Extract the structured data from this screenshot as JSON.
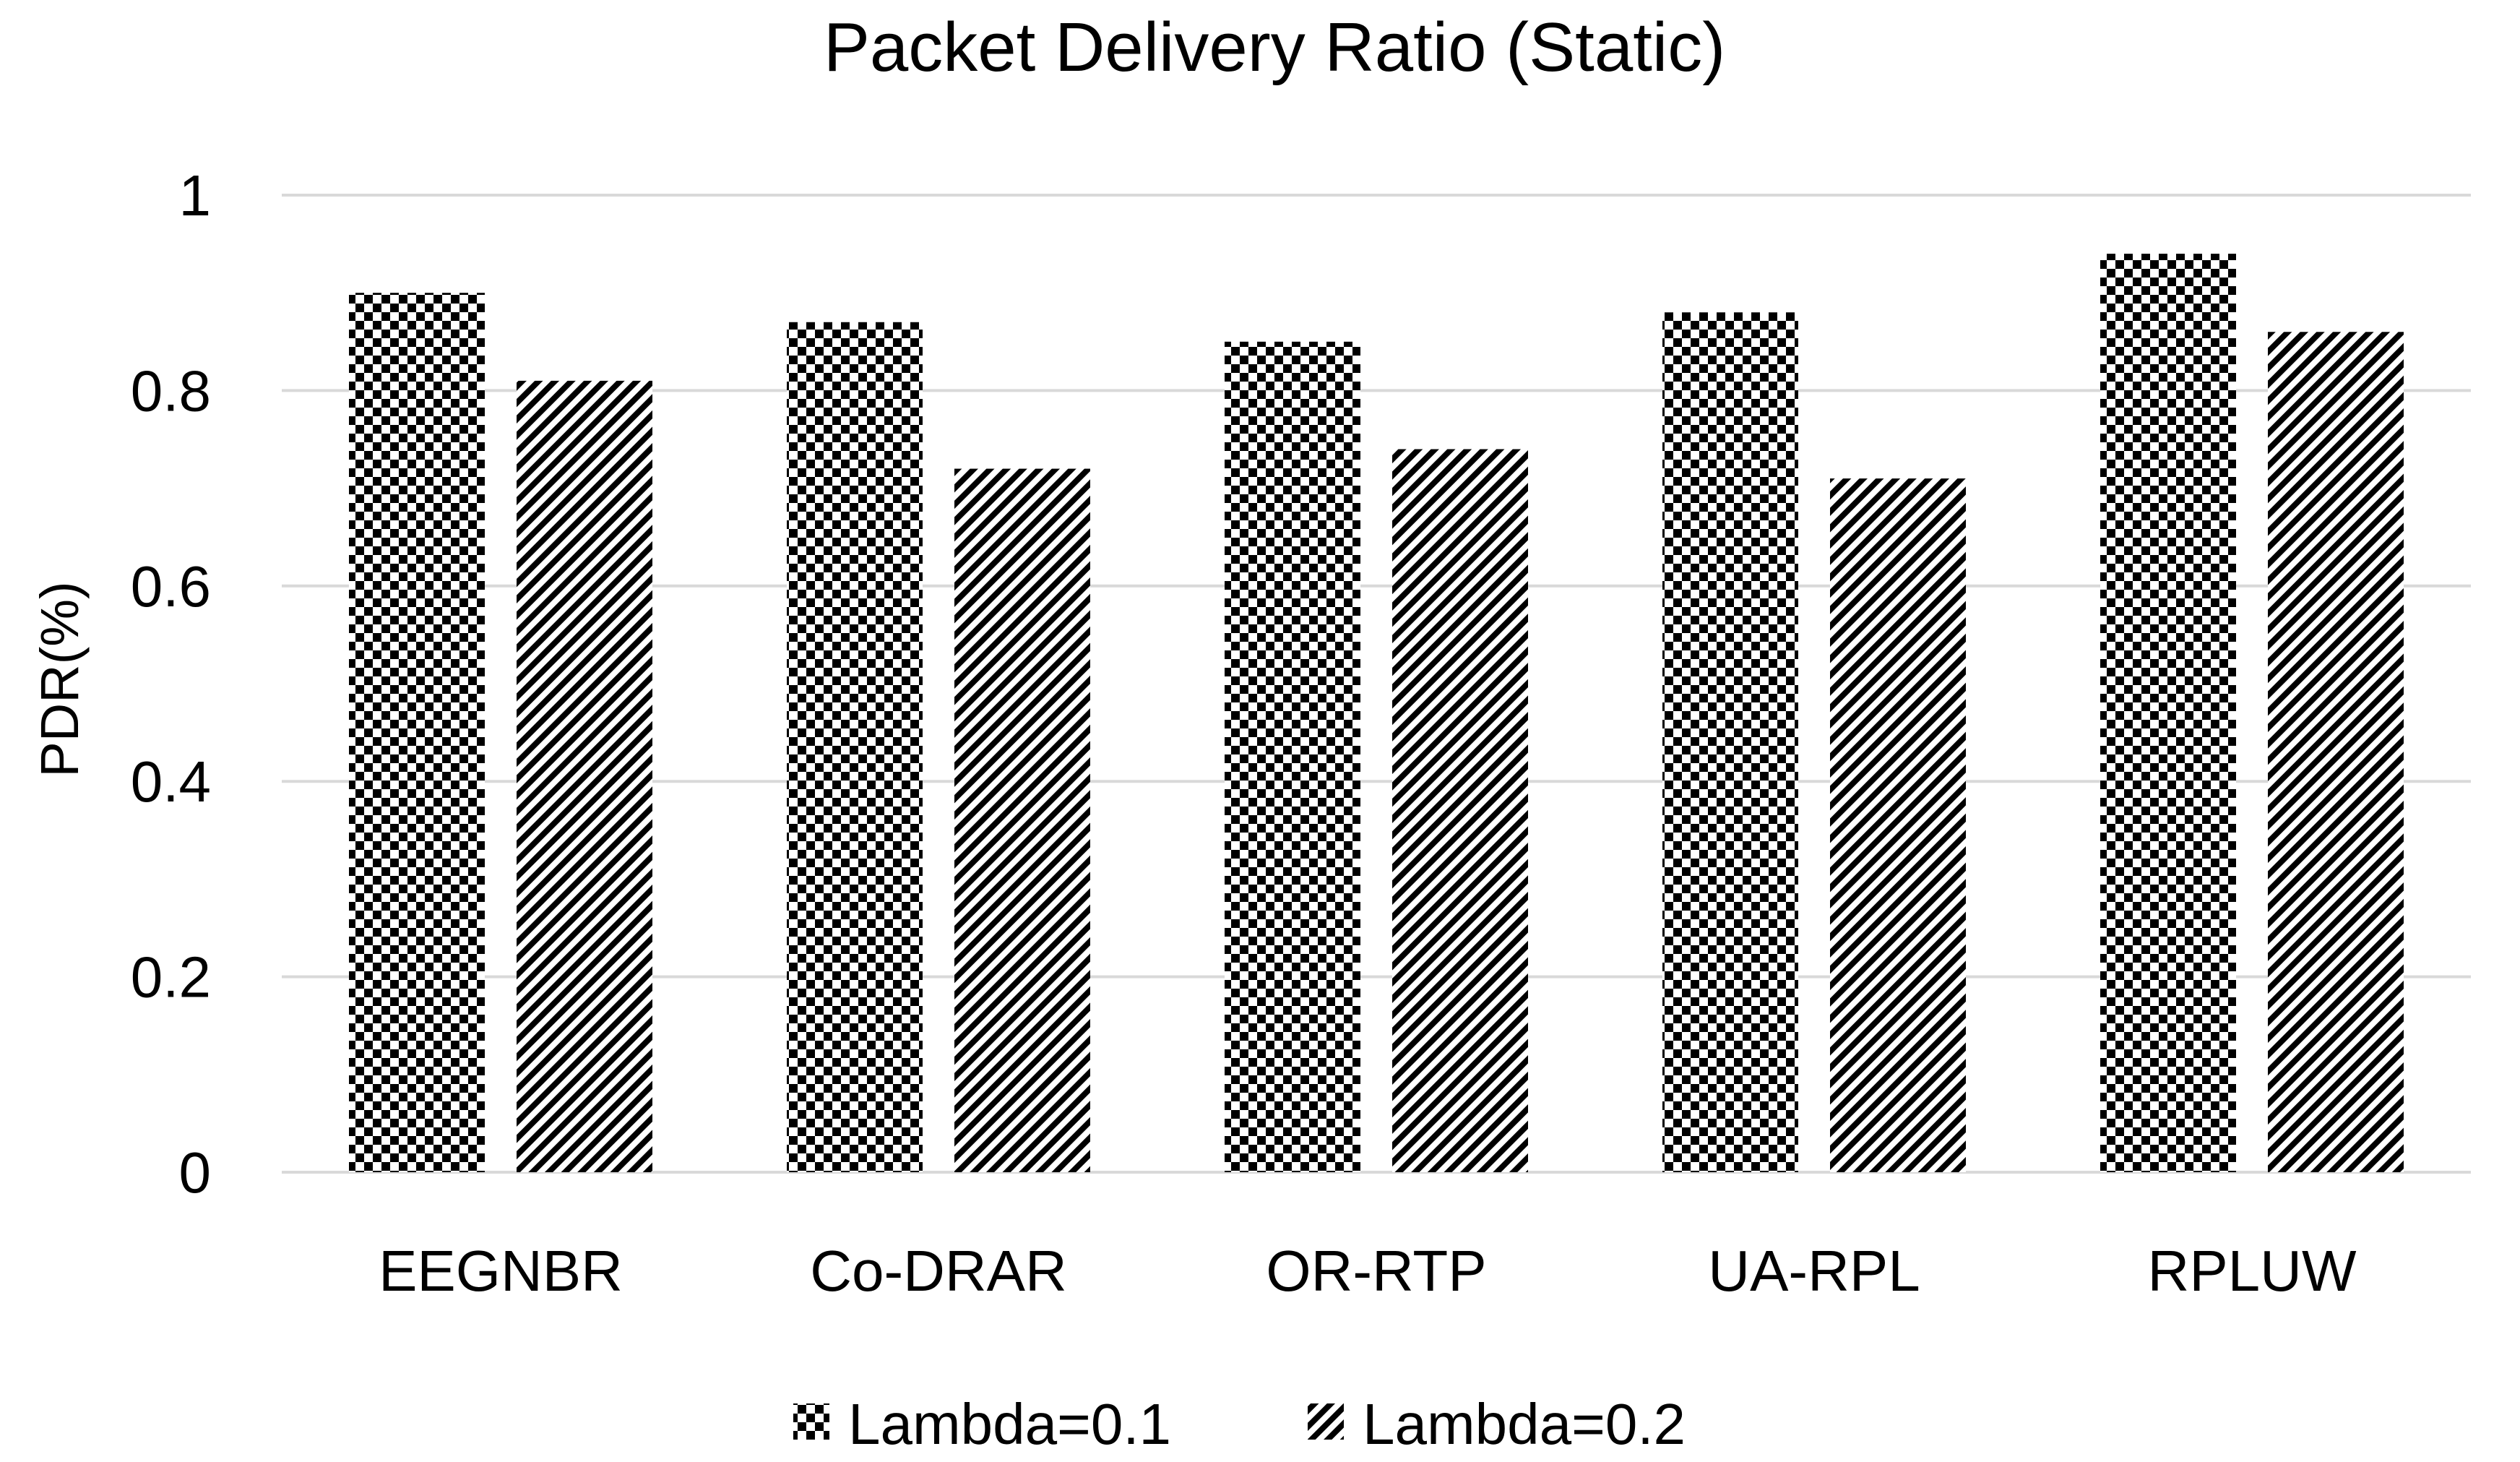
{
  "chart_data": {
    "type": "bar",
    "title": "Packet Delivery Ratio (Static)",
    "xlabel": "",
    "ylabel": "PDR(%)",
    "categories": [
      "EEGNBR",
      "Co-DRAR",
      "OR-RTP",
      "UA-RPL",
      "RPLUW"
    ],
    "series": [
      {
        "name": "Lambda=0.1",
        "pattern": "checker",
        "values": [
          0.9,
          0.87,
          0.85,
          0.88,
          0.94
        ]
      },
      {
        "name": "Lambda=0.2",
        "pattern": "diagonal",
        "values": [
          0.81,
          0.72,
          0.74,
          0.71,
          0.86
        ]
      }
    ],
    "ylim": [
      0,
      1
    ],
    "yticks": [
      "0",
      "0.2",
      "0.4",
      "0.6",
      "0.8",
      "1"
    ],
    "grid": true,
    "legend": "bottom-center",
    "colors": {
      "ink": "#000000",
      "grid": "#d9d9d9",
      "background": "#ffffff"
    }
  }
}
